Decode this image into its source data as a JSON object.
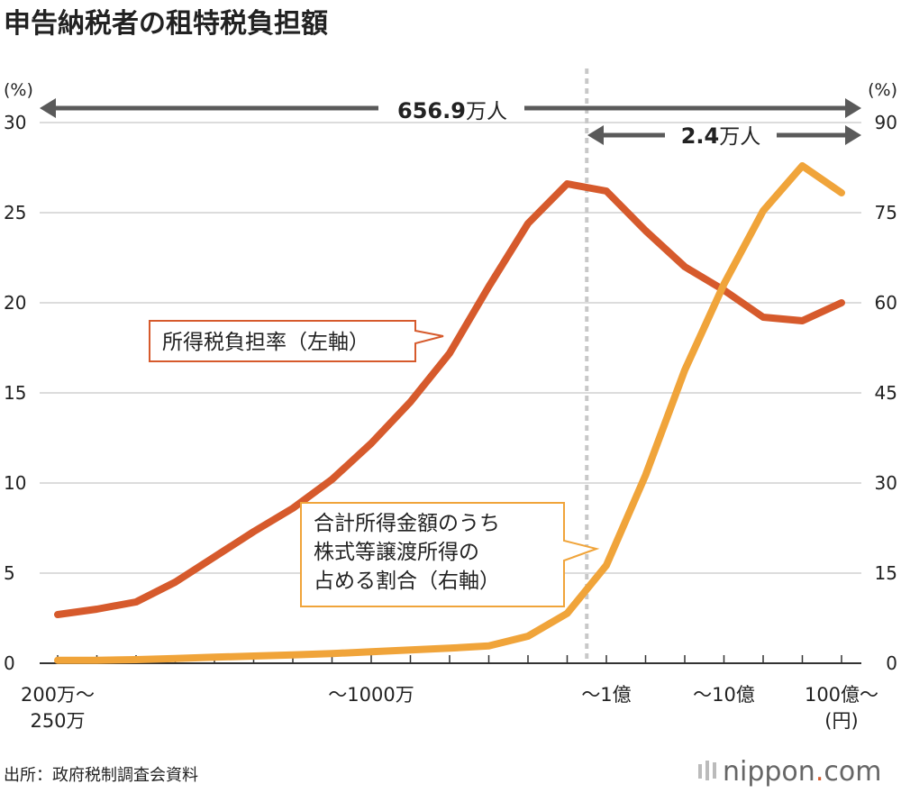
{
  "title": "申告納税者の租特税負担額",
  "colors": {
    "tax_rate": "#d65a2c",
    "stock_share": "#f0a43a",
    "arrow": "#5a5a5a",
    "divider": "#c8c8c8",
    "callout_border_rate": "#d65a2c",
    "callout_border_share": "#f0a43a"
  },
  "chart_data": {
    "type": "line",
    "title": "申告納税者の租特税負担額",
    "left_axis": {
      "unit_label": "(%)",
      "range": [
        0,
        30
      ],
      "ticks": [
        "0",
        "5",
        "10",
        "15",
        "20",
        "25",
        "30"
      ]
    },
    "right_axis": {
      "unit_label": "(%)",
      "range": [
        0,
        90
      ],
      "ticks": [
        "0",
        "15",
        "30",
        "45",
        "60",
        "75",
        "90"
      ]
    },
    "x_count": 21,
    "x_labels": [
      {
        "index": 0,
        "lines": [
          "200万～",
          "250万"
        ]
      },
      {
        "index": 8,
        "lines": [
          "～1000万"
        ]
      },
      {
        "index": 14,
        "lines": [
          "～1億"
        ]
      },
      {
        "index": 17,
        "lines": [
          "～10億"
        ]
      },
      {
        "index": 20,
        "lines": [
          "100億～",
          "(円)"
        ]
      }
    ],
    "series": [
      {
        "name": "所得税負担率（左軸）",
        "axis": "left",
        "values": [
          2.7,
          3.0,
          3.4,
          4.5,
          5.9,
          7.3,
          8.6,
          10.2,
          12.2,
          14.5,
          17.2,
          20.9,
          24.4,
          26.6,
          26.2,
          24.0,
          22.0,
          20.7,
          19.2,
          19.0,
          20.0
        ]
      },
      {
        "name": "合計所得金額のうち株式等譲渡所得の占める割合（右軸）",
        "axis": "right",
        "values": [
          0.5,
          0.5,
          0.6,
          0.8,
          1.0,
          1.2,
          1.4,
          1.6,
          1.9,
          2.2,
          2.5,
          2.9,
          4.5,
          8.3,
          16.3,
          31.3,
          48.8,
          63.1,
          75.3,
          82.8,
          78.3
        ]
      }
    ],
    "divider_index": 13.5,
    "annotations": {
      "all": {
        "number": "656.9",
        "unit": "万人"
      },
      "top": {
        "number": "2.4",
        "unit": "万人"
      }
    },
    "callouts": {
      "tax_rate": [
        "所得税負担率（左軸）"
      ],
      "stock_share": [
        "合計所得金額のうち",
        "株式等譲渡所得の",
        "占める割合（右軸）"
      ]
    }
  },
  "source": "出所：政府税制調査会資料",
  "logo": {
    "prefix": "nippon",
    "suffix": ".com"
  }
}
